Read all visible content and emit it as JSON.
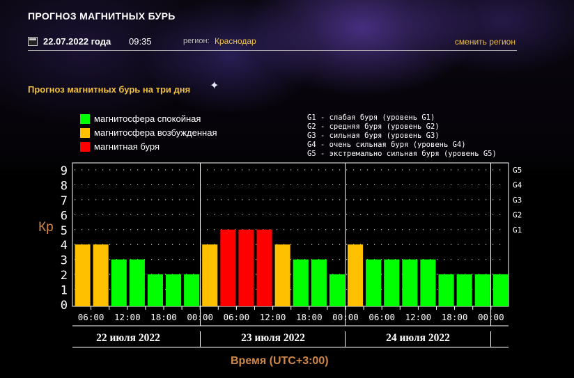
{
  "header": {
    "title": "ПРОГНОЗ МАГНИТНЫХ БУРЬ",
    "date": "22.07.2022 года",
    "time": "09:35",
    "region_label": "регион:",
    "region": "Краснодар",
    "change_region": "сменить регион",
    "calendar_icon": "calendar-icon"
  },
  "section_title": "Прогноз магнитных бурь на три дня",
  "legend": [
    {
      "label": "магнитосфера спокойная",
      "color": "#00ff00"
    },
    {
      "label": "магнитосфера возбужденная",
      "color": "#ffc000"
    },
    {
      "label": "магнитная буря",
      "color": "#ff0000"
    }
  ],
  "storm_levels": [
    "G1 - слабая буря (уровень G1)",
    "G2 - средняя буря (уровень G2)",
    "G3 - сильная буря (уровень G3)",
    "G4 - очень сильная буря (уровень G4)",
    "G5 - экстремально сильная буря (уровень G5)"
  ],
  "axis": {
    "kp_label": "Кр",
    "time_label": "Время (UTC+3:00)"
  },
  "chart_data": {
    "type": "bar",
    "ylabel": "Кр",
    "xlabel": "Время (UTC+3:00)",
    "ylim": [
      0,
      9
    ],
    "y_ticks": [
      "0",
      "1",
      "2",
      "3",
      "4",
      "5",
      "6",
      "7",
      "8",
      "9"
    ],
    "right_ticks": [
      {
        "label": "G1",
        "kp": 5
      },
      {
        "label": "G2",
        "kp": 6
      },
      {
        "label": "G3",
        "kp": 7
      },
      {
        "label": "G4",
        "kp": 8
      },
      {
        "label": "G5",
        "kp": 9
      }
    ],
    "x_tick_labels": [
      "06:00",
      "12:00",
      "18:00",
      "00:00",
      "06:00",
      "12:00",
      "18:00",
      "00:00",
      "06:00",
      "12:00",
      "18:00",
      "00:00"
    ],
    "days": [
      "22 июля 2022",
      "23 июля 2022",
      "24 июля 2022"
    ],
    "colors": {
      "quiet": "#00ff00",
      "active": "#ffc000",
      "storm": "#ff0000"
    },
    "values": [
      4,
      4,
      3,
      3,
      2,
      2,
      2,
      4,
      5,
      5,
      5,
      4,
      3,
      3,
      2,
      4,
      3,
      3,
      3,
      3,
      2,
      2,
      2,
      2
    ],
    "levels": [
      "active",
      "active",
      "quiet",
      "quiet",
      "quiet",
      "quiet",
      "quiet",
      "active",
      "storm",
      "storm",
      "storm",
      "active",
      "quiet",
      "quiet",
      "quiet",
      "active",
      "quiet",
      "quiet",
      "quiet",
      "quiet",
      "quiet",
      "quiet",
      "quiet",
      "quiet"
    ],
    "grid": true
  }
}
